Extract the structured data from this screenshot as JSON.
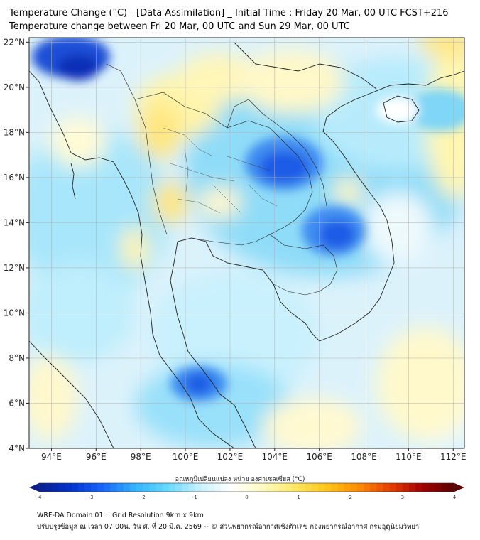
{
  "title_line1": "Temperature Change (°C) - [Data Assimilation] _ Initial Time : Friday 20 Mar, 00 UTC FCST+216",
  "title_line2": "Temperature change between Fri 20 Mar, 00 UTC and Sun 29 Mar, 00 UTC",
  "map": {
    "lat_labels": [
      "22°N",
      "20°N",
      "18°N",
      "16°N",
      "14°N",
      "12°N",
      "10°N",
      "8°N",
      "6°N",
      "4°N"
    ],
    "lon_labels": [
      "94°E",
      "96°E",
      "98°E",
      "100°E",
      "102°E",
      "104°E",
      "106°E",
      "108°E",
      "110°E",
      "112°E"
    ],
    "lat_range": [
      4,
      22.2
    ],
    "lon_range": [
      93,
      112.5
    ],
    "colors": {
      "background": "#ffffff",
      "ocean_base": "#dcf2fb",
      "gridline": "#b0b0b0",
      "coast": "#222222"
    }
  },
  "colorbar": {
    "label": "อุณหภูมิเปลี่ยนแปลง หน่วย องศาเซลเซียส (°C)",
    "ticks": [
      "-4",
      "-3",
      "-2",
      "-1",
      "0",
      "1",
      "2",
      "3",
      "4"
    ],
    "range": [
      -4,
      4
    ],
    "colors": [
      "#0a1f8c",
      "#0033cc",
      "#1a66ff",
      "#33b3ff",
      "#66d9ff",
      "#c6f0ff",
      "#ffffff",
      "#fffac0",
      "#ffe866",
      "#ffc61a",
      "#ff8c00",
      "#e63c00",
      "#a00000",
      "#5a0000"
    ]
  },
  "footer_line1": "WRF-DA Domain 01 :: Grid Resolution 9km x 9km",
  "footer_line2": "ปรับปรุงข้อมูล ณ เวลา 07:00น. วัน ศ. ที่ 20 มี.ค. 2569 -- © ส่วนพยากรณ์อากาศเชิงตัวเลข กองพยากรณ์อากาศ กรมอุตุนิยมวิทยา"
}
